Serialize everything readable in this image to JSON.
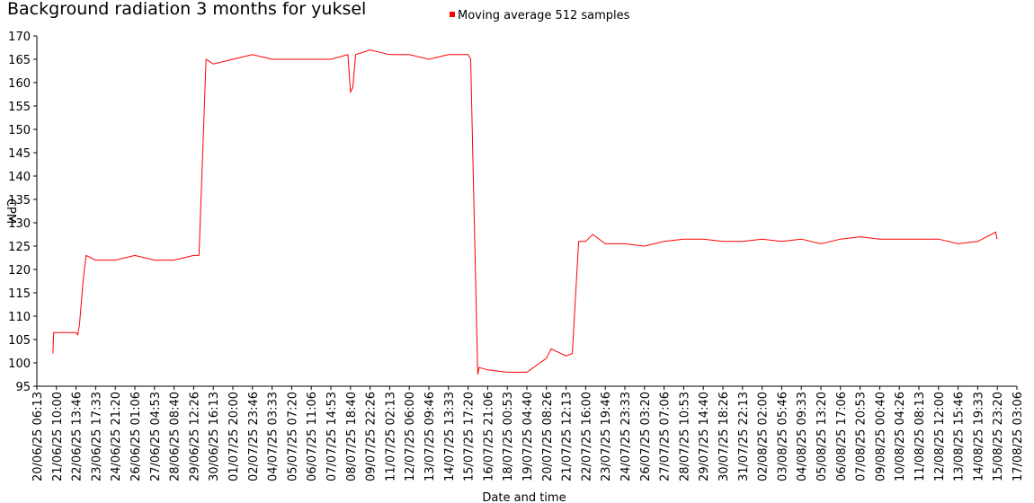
{
  "chart_data": {
    "type": "line",
    "title": "Background radiation 3 months for yuksel",
    "xlabel": "Date and time",
    "ylabel": "CPM",
    "ylim": [
      95,
      170
    ],
    "yticks": [
      95,
      100,
      105,
      110,
      115,
      120,
      125,
      130,
      135,
      140,
      145,
      150,
      155,
      160,
      165,
      170
    ],
    "xlim": [
      "20/06/25 06:13",
      "17/08/25 03:06"
    ],
    "xticks": [
      "20/06/25 06:13",
      "21/06/25 10:00",
      "22/06/25 13:46",
      "23/06/25 17:33",
      "24/06/25 21:20",
      "26/06/25 01:06",
      "27/06/25 04:53",
      "28/06/25 08:40",
      "29/06/25 12:26",
      "30/06/25 16:13",
      "01/07/25 20:00",
      "02/07/25 23:46",
      "04/07/25 03:33",
      "05/07/25 07:20",
      "06/07/25 11:06",
      "07/07/25 14:53",
      "08/07/25 18:40",
      "09/07/25 22:26",
      "11/07/25 02:13",
      "12/07/25 06:00",
      "13/07/25 09:46",
      "14/07/25 13:33",
      "15/07/25 17:20",
      "16/07/25 21:06",
      "18/07/25 00:53",
      "19/07/25 04:40",
      "20/07/25 08:26",
      "21/07/25 12:13",
      "22/07/25 16:00",
      "23/07/25 19:46",
      "24/07/25 23:33",
      "26/07/25 03:20",
      "27/07/25 07:06",
      "28/07/25 10:53",
      "29/07/25 14:40",
      "30/07/25 18:26",
      "31/07/25 22:13",
      "02/08/25 02:00",
      "03/08/25 05:46",
      "04/08/25 09:33",
      "05/08/25 13:20",
      "06/08/25 17:06",
      "07/08/25 20:53",
      "09/08/25 00:40",
      "10/08/25 04:26",
      "11/08/25 08:13",
      "12/08/25 12:00",
      "13/08/25 15:46",
      "14/08/25 19:33",
      "15/08/25 23:20",
      "17/08/25 03:06"
    ],
    "x": [
      "21/06/25 05:00",
      "21/06/25 06:00",
      "21/06/25 10:00",
      "22/06/25 13:46",
      "22/06/25 16:00",
      "22/06/25 18:30",
      "23/06/25 00:00",
      "23/06/25 04:00",
      "23/06/25 17:33",
      "24/06/25 21:20",
      "26/06/25 01:06",
      "27/06/25 04:53",
      "28/06/25 08:40",
      "29/06/25 12:26",
      "29/06/25 20:00",
      "30/06/25 06:00",
      "30/06/25 16:13",
      "01/07/25 20:00",
      "02/07/25 23:46",
      "04/07/25 03:33",
      "05/07/25 07:20",
      "06/07/25 11:06",
      "07/07/25 14:53",
      "08/07/25 15:00",
      "08/07/25 18:40",
      "08/07/25 22:00",
      "09/07/25 02:00",
      "09/07/25 22:26",
      "11/07/25 02:13",
      "12/07/25 06:00",
      "13/07/25 09:46",
      "14/07/25 13:33",
      "15/07/25 17:20",
      "15/07/25 21:00",
      "16/07/25 07:00",
      "16/07/25 09:00",
      "16/07/25 21:06",
      "18/07/25 00:53",
      "19/07/25 04:40",
      "20/07/25 08:26",
      "20/07/25 15:00",
      "21/07/25 12:13",
      "21/07/25 21:00",
      "22/07/25 06:00",
      "22/07/25 16:00",
      "23/07/25 02:00",
      "23/07/25 19:46",
      "24/07/25 23:33",
      "26/07/25 03:20",
      "27/07/25 07:06",
      "28/07/25 10:53",
      "29/07/25 14:40",
      "30/07/25 18:26",
      "31/07/25 22:13",
      "02/08/25 02:00",
      "03/08/25 05:46",
      "04/08/25 09:33",
      "05/08/25 13:20",
      "06/08/25 17:06",
      "07/08/25 20:53",
      "09/08/25 00:40",
      "10/08/25 04:26",
      "11/08/25 08:13",
      "12/08/25 12:00",
      "13/08/25 15:46",
      "14/08/25 19:33",
      "15/08/25 21:00",
      "15/08/25 23:00"
    ],
    "series": [
      {
        "name": "Moving average 512 samples",
        "color": "#ff0000",
        "values": [
          102,
          106.5,
          106.5,
          106.5,
          106,
          108,
          118,
          123,
          122,
          122,
          123,
          122,
          122,
          123,
          123,
          165,
          164,
          165,
          166,
          165,
          165,
          165,
          165,
          166,
          158,
          159,
          166,
          167,
          166,
          166,
          165,
          166,
          166,
          165,
          97.5,
          99,
          98.5,
          98,
          98,
          101,
          103,
          101.5,
          102,
          126,
          126,
          127.5,
          125.5,
          125.5,
          125,
          126,
          126.5,
          126.5,
          126,
          126,
          126.5,
          126,
          126.5,
          125.5,
          126.5,
          127,
          126.5,
          126.5,
          126.5,
          126.5,
          125.5,
          126,
          128,
          126.5
        ]
      }
    ]
  }
}
